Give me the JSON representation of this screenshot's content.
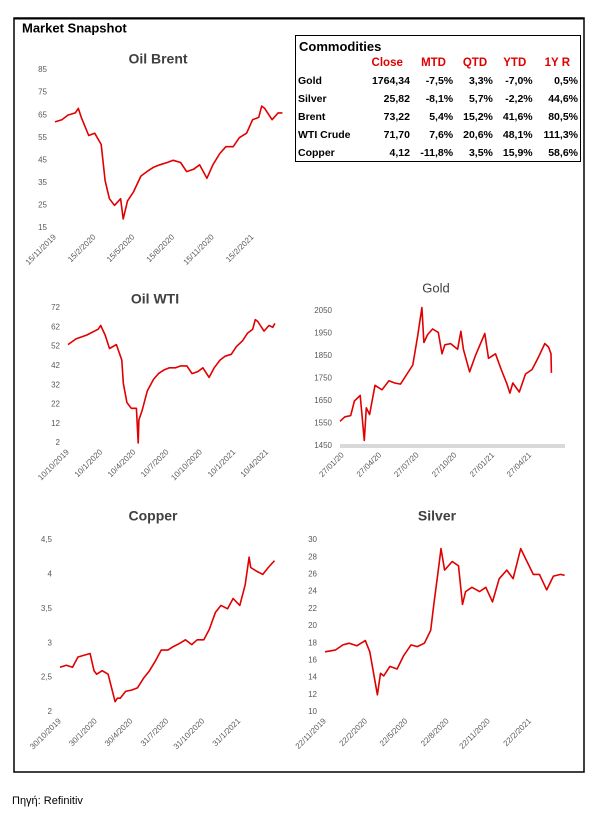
{
  "title": "Market Snapshot",
  "source": "Πηγή: Refinitiv",
  "table": {
    "title": "Commodities",
    "columns": [
      "Close",
      "MTD",
      "QTD",
      "YTD",
      "1Y R"
    ],
    "rows": [
      [
        "Gold",
        "1764,34",
        "-7,5%",
        "3,3%",
        "-7,0%",
        "0,5%"
      ],
      [
        "Silver",
        "25,82",
        "-8,1%",
        "5,7%",
        "-2,2%",
        "44,6%"
      ],
      [
        "Brent",
        "73,22",
        "5,4%",
        "15,2%",
        "41,6%",
        "80,5%"
      ],
      [
        "WTI Crude",
        "71,70",
        "7,6%",
        "20,6%",
        "48,1%",
        "111,3%"
      ],
      [
        "Copper",
        "4,12",
        "-11,8%",
        "3,5%",
        "15,9%",
        "58,6%"
      ]
    ]
  },
  "chart_data": [
    {
      "type": "line",
      "title": "Oil Brent",
      "color": "#e00000",
      "x": [
        "15/11/2019",
        "1/12/2019",
        "15/12/2019",
        "1/1/2020",
        "8/1/2020",
        "15/1/2020",
        "1/2/2020",
        "15/2/2020",
        "1/3/2020",
        "10/3/2020",
        "20/3/2020",
        "1/4/2020",
        "15/4/2020",
        "21/4/2020",
        "1/5/2020",
        "15/5/2020",
        "1/6/2020",
        "15/6/2020",
        "1/7/2020",
        "15/7/2020",
        "1/8/2020",
        "15/8/2020",
        "1/9/2020",
        "15/9/2020",
        "1/10/2020",
        "15/10/2020",
        "1/11/2020",
        "15/11/2020",
        "1/12/2020",
        "15/12/2020",
        "1/1/2021",
        "15/1/2021",
        "1/2/2021",
        "15/2/2021",
        "1/3/2021",
        "8/3/2021",
        "15/3/2021",
        "1/4/2021",
        "15/4/2021",
        "25/4/2021"
      ],
      "values": [
        62,
        63,
        65,
        66,
        68,
        64,
        56,
        57,
        52,
        36,
        28,
        25,
        28,
        19,
        27,
        31,
        38,
        40,
        42,
        43,
        44,
        45,
        44,
        40,
        41,
        43,
        37,
        43,
        48,
        51,
        51,
        55,
        57,
        63,
        64,
        69,
        68,
        63,
        66,
        66
      ],
      "xlim": [
        "15/11/2019",
        "1/5/2021"
      ],
      "xticks": [
        "15/11/2019",
        "15/2/2020",
        "15/5/2020",
        "15/8/2020",
        "15/11/2020",
        "15/2/2021"
      ],
      "ylim": [
        15,
        85
      ],
      "yticks": [
        15,
        25,
        35,
        45,
        55,
        65,
        75,
        85
      ]
    },
    {
      "type": "line",
      "title": "Oil WTI",
      "color": "#e00000",
      "x": [
        "10/10/2019",
        "1/11/2019",
        "1/12/2019",
        "1/1/2020",
        "8/1/2020",
        "20/1/2020",
        "1/2/2020",
        "20/2/2020",
        "6/3/2020",
        "10/3/2020",
        "20/3/2020",
        "1/4/2020",
        "15/4/2020",
        "20/4/2020",
        "22/4/2020",
        "1/5/2020",
        "15/5/2020",
        "1/6/2020",
        "15/6/2020",
        "1/7/2020",
        "15/7/2020",
        "1/8/2020",
        "15/8/2020",
        "1/9/2020",
        "15/9/2020",
        "1/10/2020",
        "15/10/2020",
        "1/11/2020",
        "15/11/2020",
        "1/12/2020",
        "15/12/2020",
        "1/1/2021",
        "15/1/2021",
        "1/2/2021",
        "15/2/2021",
        "1/3/2021",
        "8/3/2021",
        "15/3/2021",
        "1/4/2021",
        "15/4/2021",
        "25/4/2021",
        "1/5/2021"
      ],
      "values": [
        53,
        56,
        58,
        61,
        63,
        58,
        51,
        53,
        45,
        33,
        23,
        20,
        20,
        2,
        14,
        19,
        29,
        35,
        38,
        40,
        41,
        41,
        42,
        42,
        38,
        39,
        41,
        36,
        41,
        45,
        47,
        48,
        52,
        55,
        59,
        61,
        66,
        65,
        60,
        63,
        62,
        64
      ],
      "xlim": [
        "10/10/2019",
        "15/5/2021"
      ],
      "xticks": [
        "10/10/2019",
        "10/1/2020",
        "10/4/2020",
        "10/7/2020",
        "10/10/2020",
        "10/1/2021",
        "10/4/2021"
      ],
      "ylim": [
        2,
        72
      ],
      "yticks": [
        2,
        12,
        22,
        32,
        42,
        52,
        62,
        72
      ]
    },
    {
      "type": "line",
      "title": "Gold",
      "color": "#e00000",
      "x": [
        "20/01/20",
        "01/02/20",
        "15/02/20",
        "24/02/20",
        "09/03/20",
        "19/03/20",
        "24/03/20",
        "01/04/20",
        "14/04/20",
        "01/05/20",
        "18/05/20",
        "01/06/20",
        "15/06/20",
        "01/07/20",
        "15/07/20",
        "27/07/20",
        "06/08/20",
        "11/08/20",
        "20/08/20",
        "01/09/20",
        "15/09/20",
        "24/09/20",
        "01/10/20",
        "15/10/20",
        "01/11/20",
        "09/11/20",
        "15/11/20",
        "30/11/20",
        "15/12/20",
        "06/01/21",
        "15/01/21",
        "01/02/21",
        "15/02/21",
        "01/03/21",
        "08/03/21",
        "15/03/21",
        "31/03/21",
        "15/04/21",
        "01/05/21",
        "15/05/21",
        "01/06/21",
        "10/06/21",
        "16/06/21",
        "17/06/21"
      ],
      "values": [
        1560,
        1580,
        1585,
        1650,
        1675,
        1475,
        1620,
        1590,
        1720,
        1700,
        1740,
        1730,
        1725,
        1770,
        1810,
        1940,
        2065,
        1910,
        1945,
        1970,
        1955,
        1860,
        1900,
        1905,
        1880,
        1960,
        1880,
        1780,
        1855,
        1950,
        1840,
        1860,
        1790,
        1725,
        1685,
        1730,
        1690,
        1770,
        1790,
        1840,
        1905,
        1890,
        1860,
        1775
      ],
      "xlim": [
        "20/01/20",
        "20/07/21"
      ],
      "xticks": [
        "27/01/20",
        "27/04/20",
        "27/07/20",
        "27/10/20",
        "27/01/21",
        "27/04/21"
      ],
      "ylim": [
        1450,
        2050
      ],
      "yticks": [
        1450,
        1550,
        1650,
        1750,
        1850,
        1950,
        2050
      ]
    },
    {
      "type": "line",
      "title": "Copper",
      "color": "#e00000",
      "x": [
        "30/10/2019",
        "15/11/2019",
        "1/12/2019",
        "15/12/2019",
        "15/1/2020",
        "25/1/2020",
        "1/2/2020",
        "15/2/2020",
        "1/3/2020",
        "19/3/2020",
        "25/3/2020",
        "1/4/2020",
        "15/4/2020",
        "1/5/2020",
        "15/5/2020",
        "1/6/2020",
        "15/6/2020",
        "1/7/2020",
        "15/7/2020",
        "1/8/2020",
        "15/8/2020",
        "1/9/2020",
        "15/9/2020",
        "1/10/2020",
        "15/10/2020",
        "1/11/2020",
        "15/11/2020",
        "1/12/2020",
        "15/12/2020",
        "1/1/2021",
        "15/1/2021",
        "1/2/2021",
        "15/2/2021",
        "25/2/2021",
        "1/3/2021",
        "15/3/2021",
        "1/4/2021",
        "15/4/2021",
        "1/5/2021"
      ],
      "values": [
        2.65,
        2.68,
        2.65,
        2.8,
        2.85,
        2.6,
        2.55,
        2.6,
        2.55,
        2.15,
        2.2,
        2.2,
        2.3,
        2.32,
        2.35,
        2.5,
        2.6,
        2.75,
        2.9,
        2.9,
        2.95,
        3.0,
        3.05,
        2.98,
        3.05,
        3.05,
        3.2,
        3.45,
        3.55,
        3.5,
        3.65,
        3.55,
        3.85,
        4.25,
        4.1,
        4.05,
        4.0,
        4.1,
        4.2
      ],
      "xlim": [
        "30/10/2019",
        "15/5/2021"
      ],
      "xticks": [
        "30/10/2019",
        "30/1/2020",
        "30/4/2020",
        "31/7/2020",
        "31/10/2020",
        "31/1/2021"
      ],
      "ylim": [
        2,
        4.5
      ],
      "yticks": [
        2,
        {
          "value": 2.5,
          "label": "2,5"
        },
        3,
        {
          "value": 3.5,
          "label": "3,5"
        },
        4,
        {
          "value": 4.5,
          "label": "4,5"
        }
      ]
    },
    {
      "type": "line",
      "title": "Silver",
      "color": "#e00000",
      "x": [
        "22/11/2019",
        "15/12/2019",
        "1/1/2020",
        "15/1/2020",
        "1/2/2020",
        "20/2/2020",
        "1/3/2020",
        "18/3/2020",
        "25/3/2020",
        "1/4/2020",
        "15/4/2020",
        "1/5/2020",
        "15/5/2020",
        "1/6/2020",
        "15/6/2020",
        "1/7/2020",
        "15/7/2020",
        "22/7/2020",
        "1/8/2020",
        "7/8/2020",
        "15/8/2020",
        "1/9/2020",
        "15/9/2020",
        "24/9/2020",
        "1/10/2020",
        "15/10/2020",
        "1/11/2020",
        "15/11/2020",
        "30/11/2020",
        "15/12/2020",
        "1/1/2021",
        "15/1/2021",
        "1/2/2021",
        "15/2/2021",
        "1/3/2021",
        "15/3/2021",
        "31/3/2021",
        "15/4/2021",
        "1/5/2021",
        "10/5/2021"
      ],
      "values": [
        17.0,
        17.2,
        17.8,
        18.0,
        17.7,
        18.3,
        17.0,
        12.0,
        14.5,
        14.2,
        15.3,
        15.0,
        16.5,
        17.8,
        17.6,
        18.0,
        19.5,
        22.5,
        26.5,
        29.0,
        26.5,
        27.5,
        27.0,
        22.5,
        24.0,
        24.5,
        24.0,
        24.5,
        22.8,
        25.5,
        26.5,
        25.5,
        29.0,
        27.5,
        26.0,
        26.0,
        24.2,
        25.8,
        26.0,
        25.9
      ],
      "xlim": [
        "22/11/2019",
        "22/5/2021"
      ],
      "xticks": [
        "22/11/2019",
        "22/2/2020",
        "22/5/2020",
        "22/8/2020",
        "22/11/2020",
        "22/2/2021"
      ],
      "ylim": [
        10,
        30
      ],
      "yticks": [
        10,
        12,
        14,
        16,
        18,
        20,
        22,
        24,
        26,
        28,
        30
      ]
    }
  ]
}
